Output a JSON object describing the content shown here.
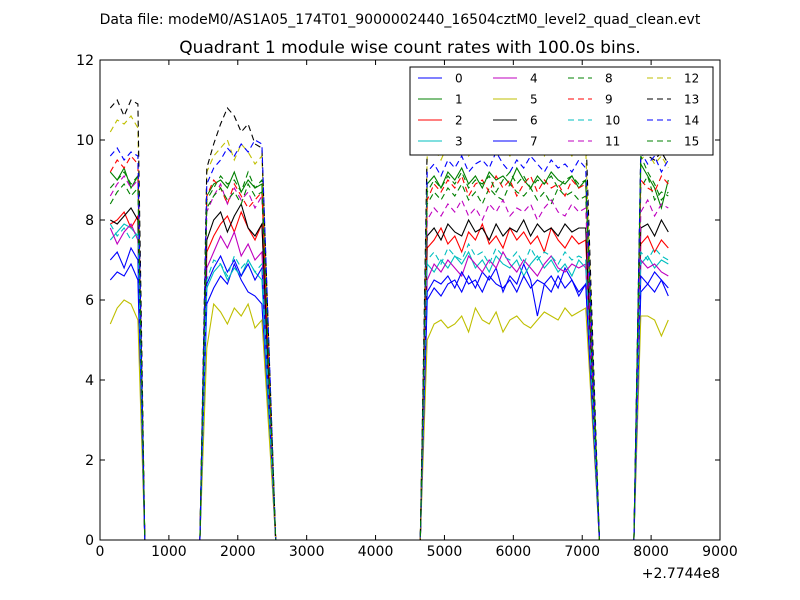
{
  "suptitle": "Data file: modeM0/AS1A05_174T01_9000002440_16504cztM0_level2_quad_clean.evt",
  "title": "Quadrant 1 module wise count rates with 100.0s bins.",
  "x_offset_label": "+2.7744e8",
  "chart_data": {
    "type": "line",
    "title": "Quadrant 1 module wise count rates with 100.0s bins.",
    "xlabel": "",
    "ylabel": "",
    "x_offset": 277440000,
    "xlim": [
      0,
      9000
    ],
    "ylim": [
      0,
      12
    ],
    "xticks": [
      0,
      1000,
      2000,
      3000,
      4000,
      5000,
      6000,
      7000,
      8000,
      9000
    ],
    "xtick_labels": [
      "0",
      "1000",
      "2000",
      "3000",
      "4000",
      "5000",
      "6000",
      "7000",
      "8000",
      "9000"
    ],
    "yticks": [
      0,
      2,
      4,
      6,
      8,
      10,
      12
    ],
    "ytick_labels": [
      "0",
      "2",
      "4",
      "6",
      "8",
      "10",
      "12"
    ],
    "grid": false,
    "legend_position": "top-right",
    "legend_columns": 4,
    "segments": [
      {
        "start": 150,
        "count": 5,
        "edge_left": null,
        "edge_right": 650
      },
      {
        "start": 1550,
        "count": 9,
        "edge_left": 1450,
        "edge_right": 2550
      },
      {
        "start": 4750,
        "count": 24,
        "edge_left": 4650,
        "edge_right": 7250
      },
      {
        "start": 7850,
        "count": 5,
        "edge_left": 7750,
        "edge_right": null
      }
    ],
    "gaps": [
      [
        650,
        1450
      ],
      [
        2550,
        4650
      ],
      [
        7250,
        7750
      ]
    ],
    "series": [
      {
        "name": "0",
        "color": "#0000ff",
        "dash": "solid",
        "segments": [
          [
            6.5,
            6.7,
            6.6,
            6.9,
            6.5
          ],
          [
            5.9,
            6.3,
            6.6,
            6.4,
            6.9,
            6.5,
            6.2,
            6.1,
            5.9
          ],
          [
            6.0,
            6.3,
            6.1,
            6.4,
            6.5,
            6.2,
            6.6,
            6.3,
            6.7,
            6.5,
            6.8,
            6.2,
            6.6,
            6.4,
            6.9,
            6.5,
            5.6,
            6.4,
            6.6,
            6.3,
            6.8,
            6.5,
            6.1,
            6.4
          ],
          [
            6.2,
            6.4,
            6.7,
            6.5,
            6.1
          ]
        ]
      },
      {
        "name": "1",
        "color": "#008000",
        "dash": "solid",
        "segments": [
          [
            9.2,
            9.0,
            9.3,
            8.8,
            9.1
          ],
          [
            8.6,
            8.9,
            9.0,
            8.8,
            9.2,
            8.7,
            9.0,
            8.8,
            8.9
          ],
          [
            8.9,
            9.1,
            8.8,
            9.2,
            9.0,
            9.3,
            8.9,
            9.1,
            8.8,
            9.2,
            9.0,
            9.1,
            8.9,
            9.3,
            9.0,
            8.8,
            9.1,
            8.9,
            9.2,
            9.0,
            8.9,
            9.1,
            8.8,
            9.0
          ],
          [
            9.4,
            9.1,
            8.8,
            8.3,
            9.0
          ]
        ]
      },
      {
        "name": "2",
        "color": "#ff0000",
        "dash": "solid",
        "segments": [
          [
            7.9,
            8.0,
            8.2,
            7.8,
            8.1
          ],
          [
            7.2,
            7.6,
            7.9,
            8.1,
            7.7,
            8.2,
            7.8,
            7.5,
            7.9
          ],
          [
            7.3,
            7.5,
            7.8,
            7.4,
            7.6,
            7.2,
            7.7,
            7.5,
            7.9,
            7.4,
            7.6,
            7.3,
            7.8,
            7.5,
            7.7,
            7.4,
            7.6,
            7.2,
            7.8,
            7.5,
            7.3,
            7.6,
            7.4,
            7.5
          ],
          [
            7.4,
            7.6,
            7.2,
            7.5,
            7.3
          ]
        ]
      },
      {
        "name": "3",
        "color": "#00bfbf",
        "dash": "solid",
        "segments": [
          [
            7.5,
            7.7,
            7.9,
            7.8,
            7.6
          ],
          [
            6.3,
            6.7,
            6.9,
            6.5,
            6.8,
            6.6,
            7.0,
            6.7,
            6.5
          ],
          [
            6.9,
            6.7,
            7.0,
            6.8,
            7.1,
            6.9,
            7.2,
            6.8,
            7.0,
            6.7,
            7.1,
            6.9,
            6.8,
            7.0,
            6.6,
            6.9,
            7.1,
            6.8,
            7.0,
            6.7,
            6.9,
            6.6,
            7.0,
            6.8
          ],
          [
            6.9,
            7.1,
            6.8,
            7.0,
            6.9
          ]
        ]
      },
      {
        "name": "4",
        "color": "#bf00bf",
        "dash": "solid",
        "segments": [
          [
            7.8,
            7.4,
            7.7,
            7.9,
            7.5
          ],
          [
            6.8,
            7.2,
            7.6,
            7.3,
            7.7,
            7.1,
            7.4,
            7.0,
            7.2
          ],
          [
            6.5,
            6.9,
            6.7,
            7.0,
            6.8,
            6.6,
            7.1,
            6.9,
            6.7,
            7.0,
            6.8,
            7.2,
            6.9,
            6.7,
            7.0,
            6.8,
            6.6,
            6.9,
            7.1,
            6.8,
            6.7,
            6.9,
            6.8,
            6.9
          ],
          [
            7.0,
            6.8,
            6.9,
            6.7,
            6.6
          ]
        ]
      },
      {
        "name": "5",
        "color": "#bfbf00",
        "dash": "solid",
        "segments": [
          [
            5.4,
            5.8,
            6.0,
            5.9,
            5.5
          ],
          [
            4.8,
            5.9,
            5.7,
            5.4,
            5.8,
            5.6,
            5.9,
            5.3,
            5.5
          ],
          [
            5.0,
            5.4,
            5.5,
            5.3,
            5.4,
            5.6,
            5.2,
            5.8,
            5.5,
            5.4,
            5.7,
            5.2,
            5.5,
            5.6,
            5.4,
            5.3,
            5.5,
            5.7,
            5.6,
            5.5,
            5.8,
            5.6,
            5.7,
            5.8
          ],
          [
            5.6,
            5.6,
            5.5,
            5.1,
            5.5
          ]
        ]
      },
      {
        "name": "6",
        "color": "#000000",
        "dash": "solid",
        "segments": [
          [
            8.0,
            7.9,
            8.1,
            8.3,
            8.0
          ],
          [
            7.5,
            8.0,
            8.2,
            7.7,
            8.1,
            8.4,
            7.8,
            7.6,
            7.9
          ],
          [
            7.6,
            7.8,
            7.5,
            7.9,
            7.7,
            7.6,
            8.0,
            7.7,
            7.8,
            7.5,
            7.9,
            7.6,
            7.8,
            7.7,
            8.0,
            7.6,
            7.9,
            7.7,
            7.8,
            7.6,
            7.9,
            7.7,
            7.8,
            7.8
          ],
          [
            7.8,
            7.9,
            7.6,
            8.0,
            7.7
          ]
        ]
      },
      {
        "name": "7",
        "color": "#0000ff",
        "dash": "solid",
        "segments": [
          [
            7.0,
            7.2,
            6.8,
            7.3,
            7.0
          ],
          [
            6.4,
            6.8,
            7.1,
            6.7,
            7.0,
            6.6,
            6.9,
            6.5,
            6.8
          ],
          [
            6.2,
            6.5,
            6.4,
            6.6,
            6.3,
            6.7,
            6.4,
            6.5,
            6.2,
            6.6,
            6.4,
            6.3,
            6.5,
            6.2,
            6.6,
            6.3,
            6.5,
            6.4,
            6.2,
            6.6,
            6.3,
            6.5,
            6.2,
            6.4
          ],
          [
            6.6,
            6.4,
            6.2,
            6.5,
            6.3
          ]
        ]
      },
      {
        "name": "8",
        "color": "#008000",
        "dash": "dashed",
        "segments": [
          [
            8.8,
            9.0,
            9.2,
            8.9,
            9.1
          ],
          [
            8.5,
            8.8,
            9.1,
            8.9,
            9.0,
            8.7,
            9.2,
            8.8,
            9.0
          ],
          [
            8.4,
            8.7,
            8.5,
            8.8,
            8.6,
            8.9,
            8.5,
            8.7,
            8.4,
            8.8,
            8.6,
            8.5,
            8.9,
            8.7,
            8.6,
            8.8,
            8.5,
            8.7,
            8.4,
            8.8,
            8.6,
            8.7,
            8.5,
            8.6
          ],
          [
            8.8,
            9.1,
            8.5,
            8.7,
            8.6
          ]
        ]
      },
      {
        "name": "9",
        "color": "#ff0000",
        "dash": "dashed",
        "segments": [
          [
            9.2,
            9.5,
            9.3,
            9.6,
            9.4
          ],
          [
            8.6,
            9.0,
            8.8,
            8.4,
            8.9,
            8.6,
            8.3,
            8.5,
            8.7
          ],
          [
            8.5,
            8.9,
            8.7,
            9.0,
            8.8,
            9.1,
            8.6,
            8.9,
            9.0,
            8.7,
            9.1,
            8.8,
            9.0,
            8.6,
            8.9,
            9.1,
            8.7,
            9.0,
            8.8,
            8.9,
            8.6,
            9.0,
            8.8,
            8.9
          ],
          [
            9.0,
            8.8,
            8.7,
            9.1,
            8.9
          ]
        ]
      },
      {
        "name": "10",
        "color": "#00bfbf",
        "dash": "dashed",
        "segments": [
          [
            7.9,
            7.6,
            7.8,
            7.5,
            7.7
          ],
          [
            6.5,
            7.0,
            6.9,
            6.6,
            7.1,
            6.8,
            7.0,
            6.7,
            6.9
          ],
          [
            7.0,
            7.2,
            6.9,
            7.3,
            7.1,
            7.0,
            7.4,
            7.1,
            7.2,
            6.9,
            7.3,
            7.1,
            7.0,
            7.2,
            6.9,
            7.3,
            7.0,
            7.2,
            7.1,
            6.9,
            7.2,
            7.0,
            7.1,
            7.0
          ],
          [
            7.2,
            7.0,
            7.3,
            7.1,
            7.0
          ]
        ]
      },
      {
        "name": "11",
        "color": "#bf00bf",
        "dash": "dashed",
        "segments": [
          [
            8.6,
            8.9,
            9.1,
            8.8,
            9.0
          ],
          [
            8.2,
            8.6,
            8.9,
            8.4,
            8.8,
            8.5,
            8.7,
            8.3,
            8.6
          ],
          [
            8.0,
            8.3,
            8.1,
            8.4,
            8.2,
            8.5,
            8.1,
            8.3,
            8.0,
            8.4,
            8.2,
            8.5,
            8.1,
            8.3,
            8.2,
            8.4,
            8.0,
            8.3,
            8.5,
            8.2,
            8.1,
            8.4,
            8.2,
            8.3
          ],
          [
            8.2,
            8.5,
            8.1,
            8.4,
            8.3
          ]
        ]
      },
      {
        "name": "12",
        "color": "#bfbf00",
        "dash": "dashed",
        "segments": [
          [
            10.2,
            10.5,
            10.4,
            10.6,
            10.3
          ],
          [
            9.2,
            9.6,
            9.8,
            10.0,
            9.5,
            9.9,
            9.7,
            9.4,
            9.6
          ],
          [
            9.6,
            9.8,
            9.5,
            9.9,
            9.7,
            10.0,
            9.6,
            9.8,
            9.9,
            9.7,
            10.1,
            9.8,
            9.6,
            9.9,
            9.7,
            10.0,
            9.8,
            9.6,
            9.9,
            9.7,
            9.8,
            9.6,
            9.9,
            9.8
          ],
          [
            9.5,
            9.7,
            9.4,
            9.6,
            9.3
          ]
        ]
      },
      {
        "name": "13",
        "color": "#000000",
        "dash": "dashed",
        "segments": [
          [
            10.8,
            11.0,
            10.6,
            11.0,
            10.9
          ],
          [
            9.3,
            9.9,
            10.4,
            10.8,
            10.6,
            10.2,
            10.4,
            9.9,
            9.8
          ],
          [
            9.9,
            10.1,
            9.8,
            10.2,
            10.0,
            10.3,
            9.9,
            10.2,
            10.4,
            10.1,
            10.3,
            10.0,
            10.2,
            10.4,
            10.1,
            10.3,
            10.0,
            10.2,
            10.3,
            10.1,
            10.2,
            10.4,
            10.1,
            10.3
          ],
          [
            9.8,
            9.6,
            9.5,
            9.7,
            9.4
          ]
        ]
      },
      {
        "name": "14",
        "color": "#0000ff",
        "dash": "dashed",
        "segments": [
          [
            9.6,
            9.8,
            9.5,
            9.7,
            9.6
          ],
          [
            8.9,
            9.3,
            9.5,
            9.8,
            9.6,
            9.9,
            9.7,
            10.0,
            9.9
          ],
          [
            9.2,
            9.4,
            9.1,
            9.5,
            9.3,
            9.6,
            9.2,
            9.4,
            9.5,
            9.3,
            9.7,
            9.4,
            9.2,
            9.5,
            9.3,
            9.6,
            9.4,
            9.2,
            9.5,
            9.3,
            9.4,
            9.2,
            9.5,
            9.3
          ],
          [
            9.7,
            9.4,
            9.6,
            9.2,
            9.5
          ]
        ]
      },
      {
        "name": "15",
        "color": "#008000",
        "dash": "dashed",
        "segments": [
          [
            8.4,
            8.7,
            8.9,
            8.6,
            8.8
          ],
          [
            8.3,
            8.6,
            8.8,
            8.5,
            8.7,
            8.4,
            8.9,
            8.6,
            8.7
          ],
          [
            8.7,
            9.0,
            8.8,
            9.1,
            8.9,
            9.2,
            8.8,
            9.0,
            8.9,
            9.1,
            8.7,
            9.0,
            9.2,
            8.9,
            9.1,
            8.8,
            9.0,
            8.9,
            9.1,
            8.8,
            9.0,
            9.1,
            8.9,
            9.0
          ],
          [
            9.6,
            9.2,
            8.9,
            8.5,
            8.7
          ]
        ]
      }
    ]
  }
}
